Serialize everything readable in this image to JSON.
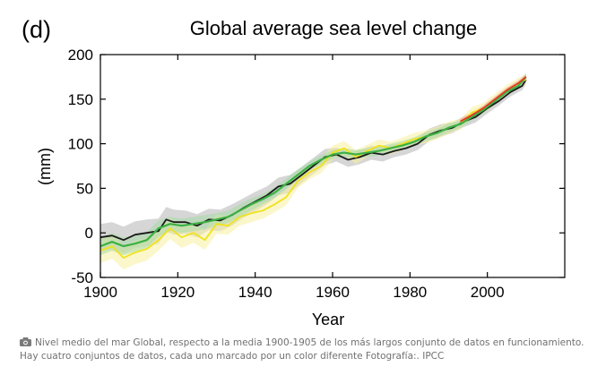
{
  "panel_label": "(d)",
  "chart_data": {
    "type": "line",
    "title": "Global average sea level change",
    "xlabel": "Year",
    "ylabel": "(mm)",
    "xlim": [
      1900,
      2020
    ],
    "ylim": [
      -50,
      200
    ],
    "xticks": [
      1900,
      1920,
      1940,
      1960,
      1980,
      2000
    ],
    "yticks": [
      -50,
      0,
      50,
      100,
      150,
      200
    ],
    "grid": false,
    "series": [
      {
        "color": "#1a1a1a",
        "band_color": "#b4b4b4",
        "x": [
          1900,
          1903,
          1906,
          1909,
          1912,
          1915,
          1917,
          1919,
          1922,
          1925,
          1928,
          1931,
          1934,
          1937,
          1940,
          1943,
          1946,
          1949,
          1952,
          1955,
          1958,
          1961,
          1964,
          1967,
          1970,
          1973,
          1976,
          1979,
          1982,
          1985,
          1988,
          1991,
          1994,
          1997,
          2000,
          2003,
          2006,
          2009,
          2010
        ],
        "y": [
          -5,
          -3,
          -8,
          -2,
          0,
          2,
          15,
          12,
          12,
          8,
          15,
          14,
          20,
          28,
          35,
          42,
          52,
          55,
          65,
          75,
          85,
          88,
          82,
          85,
          90,
          88,
          92,
          95,
          100,
          110,
          115,
          118,
          125,
          130,
          140,
          148,
          158,
          165,
          172
        ],
        "band": [
          15,
          15,
          15,
          15,
          15,
          14,
          14,
          14,
          13,
          13,
          12,
          12,
          12,
          11,
          11,
          10,
          10,
          10,
          9,
          9,
          9,
          8,
          8,
          8,
          8,
          8,
          7,
          7,
          7,
          7,
          7,
          6,
          6,
          6,
          6,
          5,
          5,
          5,
          5
        ]
      },
      {
        "color": "#f0e21e",
        "band_color": "#f8f0a0",
        "x": [
          1900,
          1903,
          1906,
          1909,
          1912,
          1915,
          1918,
          1921,
          1924,
          1927,
          1930,
          1933,
          1936,
          1939,
          1942,
          1945,
          1948,
          1951,
          1954,
          1957,
          1960,
          1963,
          1966,
          1969,
          1972,
          1975,
          1978,
          1981,
          1984,
          1987,
          1990,
          1993,
          1996,
          1999,
          2002,
          2005,
          2008,
          2010
        ],
        "y": [
          -20,
          -15,
          -28,
          -22,
          -18,
          -8,
          5,
          -5,
          0,
          -8,
          10,
          8,
          18,
          22,
          25,
          32,
          40,
          58,
          68,
          75,
          90,
          95,
          85,
          92,
          98,
          95,
          100,
          105,
          108,
          112,
          118,
          122,
          135,
          140,
          150,
          160,
          168,
          172
        ],
        "band": [
          14,
          14,
          13,
          13,
          13,
          12,
          12,
          12,
          11,
          11,
          11,
          10,
          10,
          10,
          9,
          9,
          9,
          8,
          8,
          8,
          8,
          8,
          8,
          7,
          7,
          7,
          7,
          7,
          7,
          7,
          7,
          6,
          6,
          6,
          6,
          6,
          6,
          6
        ]
      },
      {
        "color": "#3cb043",
        "band_color": "#a8dba8",
        "x": [
          1900,
          1903,
          1906,
          1909,
          1912,
          1915,
          1918,
          1921,
          1924,
          1927,
          1930,
          1933,
          1936,
          1939,
          1942,
          1945,
          1948,
          1951,
          1954,
          1957,
          1960,
          1963,
          1966,
          1969,
          1972,
          1975,
          1978,
          1981,
          1984,
          1987,
          1990,
          1993,
          1996,
          1999,
          2002,
          2005,
          2008,
          2010
        ],
        "y": [
          -15,
          -10,
          -15,
          -12,
          -8,
          5,
          10,
          8,
          10,
          12,
          15,
          18,
          25,
          32,
          38,
          45,
          55,
          65,
          75,
          82,
          88,
          90,
          88,
          90,
          92,
          95,
          98,
          102,
          108,
          112,
          118,
          122,
          130,
          138,
          148,
          158,
          165,
          175
        ],
        "band": [
          10,
          10,
          10,
          9,
          9,
          9,
          8,
          8,
          8,
          8,
          7,
          7,
          7,
          7,
          6,
          6,
          6,
          6,
          5,
          5,
          5,
          5,
          5,
          5,
          5,
          5,
          5,
          5,
          5,
          5,
          5,
          4,
          4,
          4,
          4,
          4,
          4,
          4
        ]
      },
      {
        "color": "#e03a22",
        "band_color": "#f0a090",
        "x": [
          1993,
          1996,
          1999,
          2002,
          2005,
          2008,
          2010
        ],
        "y": [
          125,
          132,
          140,
          150,
          160,
          168,
          175
        ],
        "band": [
          3,
          3,
          3,
          3,
          3,
          3,
          3
        ]
      }
    ]
  },
  "caption": {
    "text": "Nivel medio del mar Global, respecto a la media 1900-1905 de los más largos conjunto de datos en funcionamiento. Hay cuatro conjuntos de datos, cada uno marcado por un color diferente Fotografía:. IPCC"
  }
}
